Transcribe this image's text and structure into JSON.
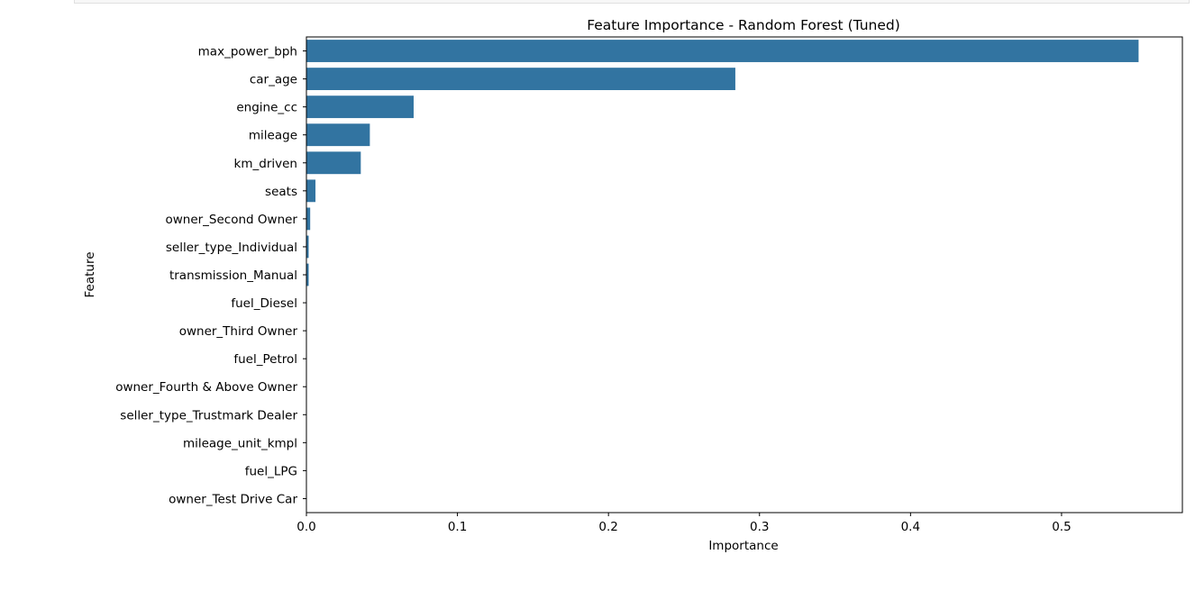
{
  "chart_data": {
    "type": "bar",
    "orientation": "horizontal",
    "title": "Feature Importance - Random Forest (Tuned)",
    "xlabel": "Importance",
    "ylabel": "Feature",
    "xlim": [
      0,
      0.58
    ],
    "xticks": [
      "0.0",
      "0.1",
      "0.2",
      "0.3",
      "0.4",
      "0.5"
    ],
    "bar_color": "#3274a1",
    "grid": false,
    "categories": [
      "max_power_bph",
      "car_age",
      "engine_cc",
      "mileage",
      "km_driven",
      "seats",
      "owner_Second Owner",
      "seller_type_Individual",
      "transmission_Manual",
      "fuel_Diesel",
      "owner_Third Owner",
      "fuel_Petrol",
      "owner_Fourth & Above Owner",
      "seller_type_Trustmark Dealer",
      "mileage_unit_kmpl",
      "fuel_LPG",
      "owner_Test Drive Car"
    ],
    "values": [
      0.551,
      0.284,
      0.071,
      0.042,
      0.036,
      0.006,
      0.0025,
      0.0015,
      0.0015,
      0.0003,
      0.0002,
      0.0002,
      0.0001,
      0.0001,
      0.0,
      0.0,
      0.0
    ]
  }
}
